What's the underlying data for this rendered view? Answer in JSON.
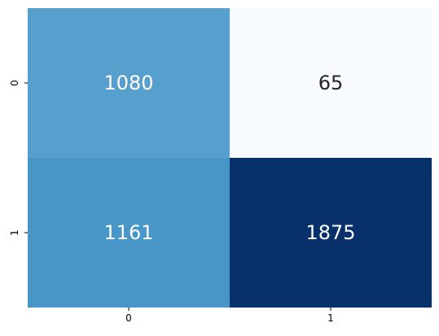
{
  "chart_data": {
    "type": "heatmap",
    "title": "",
    "xlabel": "",
    "ylabel": "",
    "x_categories": [
      "0",
      "1"
    ],
    "y_categories": [
      "0",
      "1"
    ],
    "values": [
      [
        1080,
        65
      ],
      [
        1161,
        1875
      ]
    ],
    "colormap": "Blues",
    "colorbar": false,
    "grid": false
  }
}
